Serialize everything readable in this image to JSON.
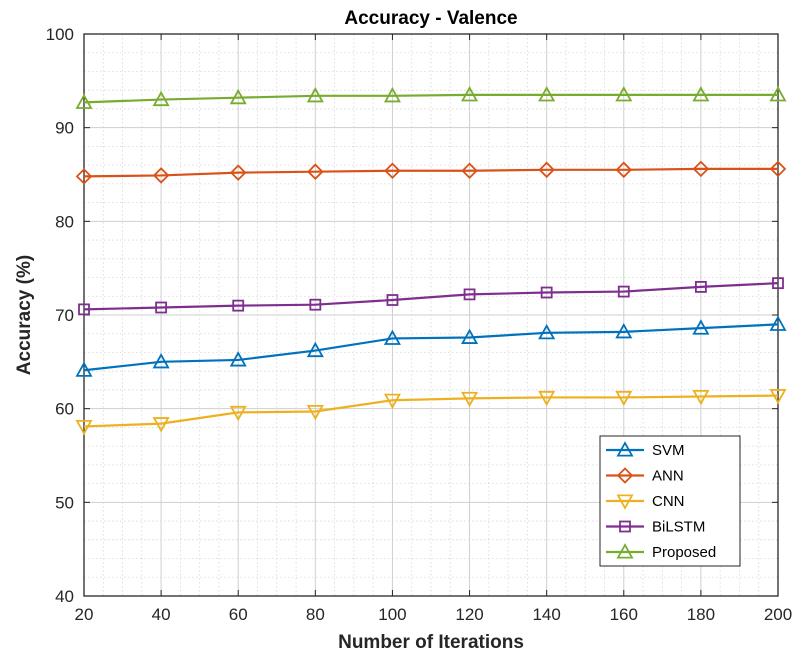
{
  "chart_data": {
    "type": "line",
    "title": "Accuracy - Valence",
    "xlabel": "Number of Iterations",
    "ylabel": "Accuracy (%)",
    "x": [
      20,
      40,
      60,
      80,
      100,
      120,
      140,
      160,
      180,
      200
    ],
    "xlim": [
      20,
      200
    ],
    "ylim": [
      40,
      100
    ],
    "xticks": [
      "20",
      "40",
      "60",
      "80",
      "100",
      "120",
      "140",
      "160",
      "180",
      "200"
    ],
    "yticks": [
      "40",
      "50",
      "60",
      "70",
      "80",
      "90",
      "100"
    ],
    "grid": true,
    "minor_grid": true,
    "legend_position": "bottom-right",
    "series": [
      {
        "name": "SVM",
        "color": "#0072BD",
        "marker": "triangle-up",
        "values": [
          64.1,
          65.0,
          65.2,
          66.2,
          67.5,
          67.6,
          68.1,
          68.2,
          68.6,
          69.0
        ]
      },
      {
        "name": "ANN",
        "color": "#D95319",
        "marker": "diamond",
        "values": [
          84.8,
          84.9,
          85.2,
          85.3,
          85.4,
          85.4,
          85.5,
          85.5,
          85.6,
          85.6
        ]
      },
      {
        "name": "CNN",
        "color": "#EDB120",
        "marker": "triangle-down",
        "values": [
          58.1,
          58.4,
          59.6,
          59.7,
          60.9,
          61.1,
          61.2,
          61.2,
          61.3,
          61.4
        ]
      },
      {
        "name": "BiLSTM",
        "color": "#7E2F8E",
        "marker": "square",
        "values": [
          70.6,
          70.8,
          71.0,
          71.1,
          71.6,
          72.2,
          72.4,
          72.5,
          73.0,
          73.4
        ]
      },
      {
        "name": "Proposed",
        "color": "#77AC30",
        "marker": "triangle-up",
        "values": [
          92.7,
          93.0,
          93.2,
          93.4,
          93.4,
          93.5,
          93.5,
          93.5,
          93.5,
          93.5
        ]
      }
    ]
  }
}
